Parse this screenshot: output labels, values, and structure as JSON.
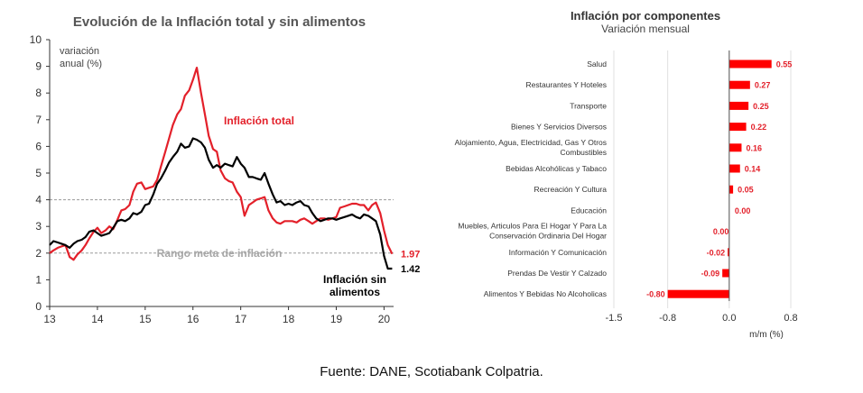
{
  "chart_data": [
    {
      "type": "line",
      "title": "Evolución de la Inflación total y sin alimentos",
      "ylabel_line1": "variación",
      "ylabel_line2": "anual (%)",
      "ylim": [
        0,
        10
      ],
      "xlim": [
        13,
        20.2
      ],
      "y_ticks": [
        "0",
        "1",
        "2",
        "3",
        "4",
        "5",
        "6",
        "7",
        "8",
        "9",
        "10"
      ],
      "x_ticks": [
        "13",
        "14",
        "15",
        "16",
        "17",
        "18",
        "19",
        "20"
      ],
      "reference_lines": [
        2,
        4
      ],
      "band_label": "Rango meta de inflación",
      "grid": false,
      "series": [
        {
          "name": "Inflación total",
          "color": "#e3202a",
          "end_label": "1.97",
          "x": [
            13.0,
            13.08,
            13.17,
            13.25,
            13.33,
            13.42,
            13.5,
            13.58,
            13.67,
            13.75,
            13.83,
            13.92,
            14.0,
            14.08,
            14.17,
            14.25,
            14.33,
            14.42,
            14.5,
            14.58,
            14.67,
            14.75,
            14.83,
            14.92,
            15.0,
            15.08,
            15.17,
            15.25,
            15.33,
            15.42,
            15.5,
            15.58,
            15.67,
            15.75,
            15.83,
            15.92,
            16.0,
            16.08,
            16.17,
            16.25,
            16.33,
            16.42,
            16.5,
            16.58,
            16.67,
            16.75,
            16.83,
            16.92,
            17.0,
            17.08,
            17.17,
            17.25,
            17.33,
            17.42,
            17.5,
            17.58,
            17.67,
            17.75,
            17.83,
            17.92,
            18.0,
            18.08,
            18.17,
            18.25,
            18.33,
            18.42,
            18.5,
            18.58,
            18.67,
            18.75,
            18.83,
            18.92,
            19.0,
            19.08,
            19.17,
            19.25,
            19.33,
            19.42,
            19.5,
            19.58,
            19.67,
            19.75,
            19.83,
            19.92,
            20.0,
            20.08,
            20.17
          ],
          "y": [
            2.0,
            2.1,
            2.2,
            2.25,
            2.3,
            1.85,
            1.75,
            1.95,
            2.1,
            2.3,
            2.55,
            2.8,
            2.95,
            2.75,
            2.85,
            3.0,
            2.9,
            3.25,
            3.6,
            3.65,
            3.8,
            4.3,
            4.6,
            4.65,
            4.4,
            4.45,
            4.5,
            4.75,
            5.25,
            5.8,
            6.3,
            6.8,
            7.2,
            7.4,
            7.9,
            8.1,
            8.5,
            8.95,
            8.0,
            7.2,
            6.4,
            5.9,
            5.8,
            5.1,
            4.8,
            4.7,
            4.65,
            4.3,
            4.1,
            3.4,
            3.8,
            3.9,
            4.0,
            4.05,
            4.1,
            3.6,
            3.3,
            3.15,
            3.1,
            3.2,
            3.2,
            3.2,
            3.15,
            3.25,
            3.3,
            3.2,
            3.1,
            3.2,
            3.3,
            3.3,
            3.25,
            3.3,
            3.35,
            3.7,
            3.75,
            3.8,
            3.85,
            3.85,
            3.8,
            3.8,
            3.6,
            3.8,
            3.9,
            3.5,
            2.85,
            2.3,
            1.97
          ]
        },
        {
          "name": "Inflación sin alimentos",
          "name_line1": "Inflación sin",
          "name_line2": "alimentos",
          "color": "#000000",
          "end_label": "1.42",
          "x": [
            13.0,
            13.08,
            13.17,
            13.25,
            13.33,
            13.42,
            13.5,
            13.58,
            13.67,
            13.75,
            13.83,
            13.92,
            14.0,
            14.08,
            14.17,
            14.25,
            14.33,
            14.42,
            14.5,
            14.58,
            14.67,
            14.75,
            14.83,
            14.92,
            15.0,
            15.08,
            15.17,
            15.25,
            15.33,
            15.42,
            15.5,
            15.58,
            15.67,
            15.75,
            15.83,
            15.92,
            16.0,
            16.08,
            16.17,
            16.25,
            16.33,
            16.42,
            16.5,
            16.58,
            16.67,
            16.75,
            16.83,
            16.92,
            17.0,
            17.08,
            17.17,
            17.25,
            17.33,
            17.42,
            17.5,
            17.58,
            17.67,
            17.75,
            17.83,
            17.92,
            18.0,
            18.08,
            18.17,
            18.25,
            18.33,
            18.42,
            18.5,
            18.58,
            18.67,
            18.75,
            18.83,
            18.92,
            19.0,
            19.08,
            19.17,
            19.25,
            19.33,
            19.42,
            19.5,
            19.58,
            19.67,
            19.75,
            19.83,
            19.92,
            20.0,
            20.08,
            20.17
          ],
          "y": [
            2.3,
            2.45,
            2.4,
            2.35,
            2.3,
            2.2,
            2.35,
            2.45,
            2.5,
            2.6,
            2.8,
            2.85,
            2.75,
            2.65,
            2.7,
            2.75,
            2.95,
            3.2,
            3.25,
            3.2,
            3.3,
            3.5,
            3.45,
            3.55,
            3.8,
            3.85,
            4.2,
            4.6,
            4.8,
            5.1,
            5.4,
            5.6,
            5.8,
            6.1,
            5.95,
            6.0,
            6.3,
            6.25,
            6.15,
            5.95,
            5.5,
            5.2,
            5.3,
            5.2,
            5.35,
            5.3,
            5.25,
            5.6,
            5.35,
            5.2,
            4.85,
            4.85,
            4.8,
            4.75,
            5.0,
            4.6,
            4.2,
            3.9,
            3.95,
            3.8,
            3.85,
            3.8,
            3.9,
            3.95,
            3.8,
            3.75,
            3.5,
            3.3,
            3.2,
            3.25,
            3.3,
            3.3,
            3.25,
            3.3,
            3.35,
            3.4,
            3.45,
            3.35,
            3.3,
            3.45,
            3.4,
            3.3,
            3.2,
            2.7,
            1.9,
            1.42,
            1.42
          ]
        }
      ]
    },
    {
      "type": "bar",
      "orientation": "horizontal",
      "title": "Inflación por componentes",
      "subtitle": "Variación mensual",
      "xlabel": "m/m (%)",
      "xlim": [
        -1.5,
        0.8
      ],
      "x_ticks": [
        "-1.5",
        "-0.8",
        "0.0",
        "0.8"
      ],
      "bar_color": "#ff0000",
      "label_color": "#e3202a",
      "grid": true,
      "categories": [
        [
          "Salud"
        ],
        [
          "Restaurantes Y Hoteles"
        ],
        [
          "Transporte"
        ],
        [
          "Bienes Y Servicios Diversos"
        ],
        [
          "Alojamiento, Agua, Electricidad, Gas Y Otros",
          "Combustibles"
        ],
        [
          "Bebidas Alcohólicas y Tabaco"
        ],
        [
          "Recreación Y Cultura"
        ],
        [
          "Educación"
        ],
        [
          "Muebles, Articulos Para El Hogar Y Para La",
          "Conservación Ordinaria Del Hogar"
        ],
        [
          "Información Y Comunicación"
        ],
        [
          "Prendas De Vestir Y Calzado"
        ],
        [
          "Alimentos Y Bebidas No Alcoholicas"
        ]
      ],
      "values": [
        0.55,
        0.27,
        0.25,
        0.22,
        0.16,
        0.14,
        0.05,
        0.0,
        0.0,
        -0.02,
        -0.09,
        -0.8
      ],
      "value_labels": [
        "0.55",
        "0.27",
        "0.25",
        "0.22",
        "0.16",
        "0.14",
        "0.05",
        "0.00",
        "0.00",
        "-0.02",
        "-0.09",
        "-0.80"
      ]
    }
  ],
  "footer": {
    "source": "Fuente: DANE, Scotiabank Colpatria."
  }
}
